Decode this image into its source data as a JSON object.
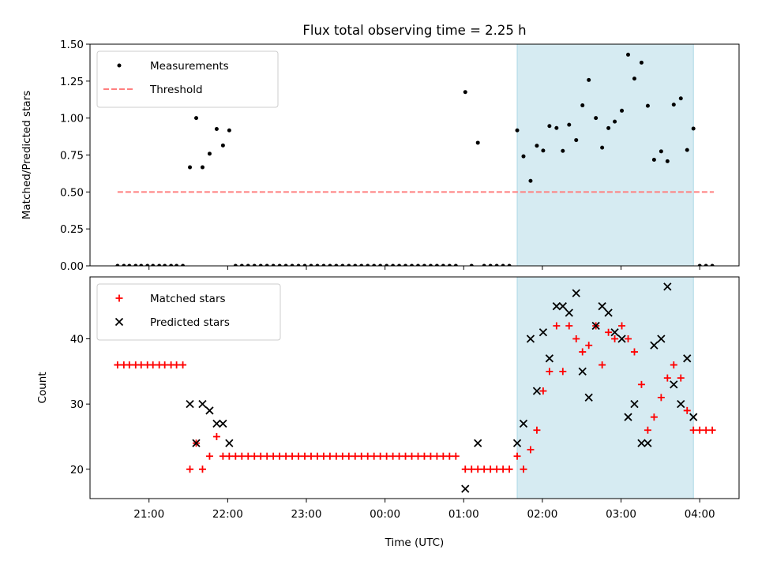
{
  "title": "Flux total observing time = 2.25 h",
  "xlabel": "Time (UTC)",
  "xticks": [
    {
      "h": 21,
      "label": "21:00"
    },
    {
      "h": 22,
      "label": "22:00"
    },
    {
      "h": 23,
      "label": "23:00"
    },
    {
      "h": 24,
      "label": "00:00"
    },
    {
      "h": 25,
      "label": "01:00"
    },
    {
      "h": 26,
      "label": "02:00"
    },
    {
      "h": 27,
      "label": "03:00"
    },
    {
      "h": 28,
      "label": "04:00"
    }
  ],
  "colors": {
    "measurement": "#000000",
    "threshold": "#ff7f7f",
    "matched": "#ff0000",
    "predicted": "#000000",
    "span_fill": "#add8e6"
  },
  "chart_data": [
    {
      "type": "scatter",
      "ylabel": "Matched/Predicted stars",
      "ylim": [
        0,
        1.5
      ],
      "yticks": [
        "0.00",
        "0.25",
        "0.50",
        "0.75",
        "1.00",
        "1.25",
        "1.50"
      ],
      "xlim": [
        20.25,
        28.5
      ],
      "highlight_span": [
        25.68,
        27.92
      ],
      "legend_position": "upper left",
      "threshold": {
        "name": "Threshold",
        "value": 0.5,
        "x_range": [
          20.6,
          28.18
        ]
      },
      "series": [
        {
          "name": "Measurements",
          "points": [
            [
              20.6,
              0
            ],
            [
              20.68,
              0
            ],
            [
              20.75,
              0
            ],
            [
              20.83,
              0
            ],
            [
              20.9,
              0
            ],
            [
              20.98,
              0
            ],
            [
              21.05,
              0
            ],
            [
              21.13,
              0
            ],
            [
              21.2,
              0
            ],
            [
              21.28,
              0
            ],
            [
              21.35,
              0
            ],
            [
              21.43,
              0
            ],
            [
              21.52,
              0.667
            ],
            [
              21.6,
              1.0
            ],
            [
              21.68,
              0.667
            ],
            [
              21.77,
              0.759
            ],
            [
              21.86,
              0.926
            ],
            [
              21.94,
              0.815
            ],
            [
              22.02,
              0.917
            ],
            [
              22.1,
              0
            ],
            [
              22.18,
              0
            ],
            [
              22.26,
              0
            ],
            [
              22.34,
              0
            ],
            [
              22.42,
              0
            ],
            [
              22.5,
              0
            ],
            [
              22.58,
              0
            ],
            [
              22.66,
              0
            ],
            [
              22.74,
              0
            ],
            [
              22.82,
              0
            ],
            [
              22.9,
              0
            ],
            [
              22.98,
              0
            ],
            [
              23.06,
              0
            ],
            [
              23.14,
              0
            ],
            [
              23.22,
              0
            ],
            [
              23.3,
              0
            ],
            [
              23.38,
              0
            ],
            [
              23.46,
              0
            ],
            [
              23.54,
              0
            ],
            [
              23.62,
              0
            ],
            [
              23.7,
              0
            ],
            [
              23.78,
              0
            ],
            [
              23.86,
              0
            ],
            [
              23.94,
              0
            ],
            [
              24.02,
              0
            ],
            [
              24.1,
              0
            ],
            [
              24.18,
              0
            ],
            [
              24.26,
              0
            ],
            [
              24.34,
              0
            ],
            [
              24.42,
              0
            ],
            [
              24.5,
              0
            ],
            [
              24.58,
              0
            ],
            [
              24.66,
              0
            ],
            [
              24.74,
              0
            ],
            [
              24.82,
              0
            ],
            [
              24.9,
              0
            ],
            [
              25.02,
              1.176
            ],
            [
              25.1,
              0
            ],
            [
              25.18,
              0.833
            ],
            [
              25.26,
              0
            ],
            [
              25.34,
              0
            ],
            [
              25.42,
              0
            ],
            [
              25.5,
              0
            ],
            [
              25.58,
              0
            ],
            [
              25.68,
              0.917
            ],
            [
              25.76,
              0.741
            ],
            [
              25.85,
              0.575
            ],
            [
              25.93,
              0.813
            ],
            [
              26.01,
              0.78
            ],
            [
              26.09,
              0.946
            ],
            [
              26.18,
              0.933
            ],
            [
              26.26,
              0.778
            ],
            [
              26.34,
              0.955
            ],
            [
              26.43,
              0.851
            ],
            [
              26.51,
              1.086
            ],
            [
              26.59,
              1.258
            ],
            [
              26.68,
              1.0
            ],
            [
              26.76,
              0.8
            ],
            [
              26.84,
              0.932
            ],
            [
              26.92,
              0.976
            ],
            [
              27.01,
              1.05
            ],
            [
              27.09,
              1.429
            ],
            [
              27.17,
              1.267
            ],
            [
              27.26,
              1.375
            ],
            [
              27.34,
              1.083
            ],
            [
              27.42,
              0.718
            ],
            [
              27.51,
              0.775
            ],
            [
              27.59,
              0.708
            ],
            [
              27.67,
              1.091
            ],
            [
              27.76,
              1.133
            ],
            [
              27.84,
              0.784
            ],
            [
              27.92,
              0.929
            ],
            [
              28.0,
              0
            ],
            [
              28.08,
              0
            ],
            [
              28.16,
              0
            ]
          ]
        }
      ]
    },
    {
      "type": "scatter",
      "ylabel": "Count",
      "ylim": [
        15.5,
        49.5
      ],
      "yticks": [
        20,
        30,
        40
      ],
      "xlim": [
        20.25,
        28.5
      ],
      "highlight_span": [
        25.68,
        27.92
      ],
      "legend_position": "upper left",
      "series": [
        {
          "name": "Matched stars",
          "marker": "+",
          "points": [
            [
              20.6,
              36
            ],
            [
              20.68,
              36
            ],
            [
              20.75,
              36
            ],
            [
              20.83,
              36
            ],
            [
              20.9,
              36
            ],
            [
              20.98,
              36
            ],
            [
              21.05,
              36
            ],
            [
              21.13,
              36
            ],
            [
              21.2,
              36
            ],
            [
              21.28,
              36
            ],
            [
              21.35,
              36
            ],
            [
              21.43,
              36
            ],
            [
              21.52,
              20
            ],
            [
              21.6,
              24
            ],
            [
              21.68,
              20
            ],
            [
              21.77,
              22
            ],
            [
              21.86,
              25
            ],
            [
              21.94,
              22
            ],
            [
              22.02,
              22
            ],
            [
              22.1,
              22
            ],
            [
              22.18,
              22
            ],
            [
              22.26,
              22
            ],
            [
              22.34,
              22
            ],
            [
              22.42,
              22
            ],
            [
              22.5,
              22
            ],
            [
              22.58,
              22
            ],
            [
              22.66,
              22
            ],
            [
              22.74,
              22
            ],
            [
              22.82,
              22
            ],
            [
              22.9,
              22
            ],
            [
              22.98,
              22
            ],
            [
              23.06,
              22
            ],
            [
              23.14,
              22
            ],
            [
              23.22,
              22
            ],
            [
              23.3,
              22
            ],
            [
              23.38,
              22
            ],
            [
              23.46,
              22
            ],
            [
              23.54,
              22
            ],
            [
              23.62,
              22
            ],
            [
              23.7,
              22
            ],
            [
              23.78,
              22
            ],
            [
              23.86,
              22
            ],
            [
              23.94,
              22
            ],
            [
              24.02,
              22
            ],
            [
              24.1,
              22
            ],
            [
              24.18,
              22
            ],
            [
              24.26,
              22
            ],
            [
              24.34,
              22
            ],
            [
              24.42,
              22
            ],
            [
              24.5,
              22
            ],
            [
              24.58,
              22
            ],
            [
              24.66,
              22
            ],
            [
              24.74,
              22
            ],
            [
              24.82,
              22
            ],
            [
              24.9,
              22
            ],
            [
              25.02,
              20
            ],
            [
              25.1,
              20
            ],
            [
              25.18,
              20
            ],
            [
              25.26,
              20
            ],
            [
              25.34,
              20
            ],
            [
              25.42,
              20
            ],
            [
              25.5,
              20
            ],
            [
              25.58,
              20
            ],
            [
              25.68,
              22
            ],
            [
              25.76,
              20
            ],
            [
              25.85,
              23
            ],
            [
              25.93,
              26
            ],
            [
              26.01,
              32
            ],
            [
              26.09,
              35
            ],
            [
              26.18,
              42
            ],
            [
              26.26,
              35
            ],
            [
              26.34,
              42
            ],
            [
              26.43,
              40
            ],
            [
              26.51,
              38
            ],
            [
              26.59,
              39
            ],
            [
              26.68,
              42
            ],
            [
              26.76,
              36
            ],
            [
              26.84,
              41
            ],
            [
              26.92,
              40
            ],
            [
              27.01,
              42
            ],
            [
              27.09,
              40
            ],
            [
              27.17,
              38
            ],
            [
              27.26,
              33
            ],
            [
              27.34,
              26
            ],
            [
              27.42,
              28
            ],
            [
              27.51,
              31
            ],
            [
              27.59,
              34
            ],
            [
              27.67,
              36
            ],
            [
              27.76,
              34
            ],
            [
              27.84,
              29
            ],
            [
              27.92,
              26
            ],
            [
              28.0,
              26
            ],
            [
              28.08,
              26
            ],
            [
              28.16,
              26
            ]
          ]
        },
        {
          "name": "Predicted stars",
          "marker": "x",
          "points": [
            [
              21.52,
              30
            ],
            [
              21.6,
              24
            ],
            [
              21.68,
              30
            ],
            [
              21.77,
              29
            ],
            [
              21.86,
              27
            ],
            [
              21.94,
              27
            ],
            [
              22.02,
              24
            ],
            [
              25.02,
              17
            ],
            [
              25.18,
              24
            ],
            [
              25.68,
              24
            ],
            [
              25.76,
              27
            ],
            [
              25.85,
              40
            ],
            [
              25.93,
              32
            ],
            [
              26.01,
              41
            ],
            [
              26.09,
              37
            ],
            [
              26.18,
              45
            ],
            [
              26.26,
              45
            ],
            [
              26.34,
              44
            ],
            [
              26.43,
              47
            ],
            [
              26.51,
              35
            ],
            [
              26.59,
              31
            ],
            [
              26.68,
              42
            ],
            [
              26.76,
              45
            ],
            [
              26.84,
              44
            ],
            [
              26.92,
              41
            ],
            [
              27.01,
              40
            ],
            [
              27.09,
              28
            ],
            [
              27.17,
              30
            ],
            [
              27.26,
              24
            ],
            [
              27.34,
              24
            ],
            [
              27.42,
              39
            ],
            [
              27.51,
              40
            ],
            [
              27.59,
              48
            ],
            [
              27.67,
              33
            ],
            [
              27.76,
              30
            ],
            [
              27.84,
              37
            ],
            [
              27.92,
              28
            ]
          ]
        }
      ]
    }
  ]
}
